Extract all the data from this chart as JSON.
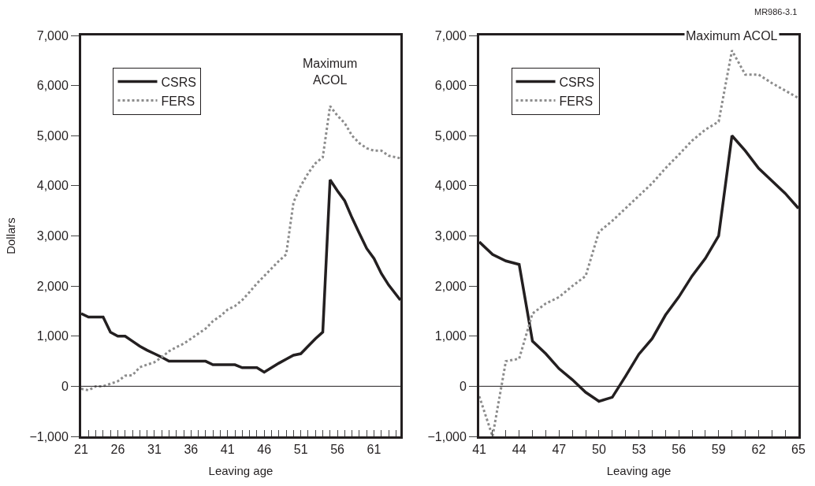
{
  "chart_data": [
    {
      "type": "line",
      "ylabel": "Dollars",
      "xlabel": "Leaving age",
      "xlim": [
        21,
        64.6
      ],
      "ylim": [
        -1000,
        7000
      ],
      "yticks": [
        {
          "value": -1000,
          "label": "−1,000"
        },
        {
          "value": 0,
          "label": "0"
        },
        {
          "value": 1000,
          "label": "1,000"
        },
        {
          "value": 2000,
          "label": "2,000"
        },
        {
          "value": 3000,
          "label": "3,000"
        },
        {
          "value": 4000,
          "label": "4,000"
        },
        {
          "value": 5000,
          "label": "5,000"
        },
        {
          "value": 6000,
          "label": "6,000"
        },
        {
          "value": 7000,
          "label": "7,000"
        }
      ],
      "xticks": [
        21,
        {
          "value": 22,
          "label": null
        },
        {
          "value": 23,
          "label": null
        },
        {
          "value": 24,
          "label": null
        },
        {
          "value": 25,
          "label": null
        },
        26,
        {
          "value": 27,
          "label": null
        },
        {
          "value": 28,
          "label": null
        },
        {
          "value": 29,
          "label": null
        },
        {
          "value": 30,
          "label": null
        },
        31,
        {
          "value": 32,
          "label": null
        },
        {
          "value": 33,
          "label": null
        },
        {
          "value": 34,
          "label": null
        },
        {
          "value": 35,
          "label": null
        },
        36,
        {
          "value": 37,
          "label": null
        },
        {
          "value": 38,
          "label": null
        },
        {
          "value": 39,
          "label": null
        },
        {
          "value": 40,
          "label": null
        },
        41,
        {
          "value": 42,
          "label": null
        },
        {
          "value": 43,
          "label": null
        },
        {
          "value": 44,
          "label": null
        },
        {
          "value": 45,
          "label": null
        },
        46,
        {
          "value": 47,
          "label": null
        },
        {
          "value": 48,
          "label": null
        },
        {
          "value": 49,
          "label": null
        },
        {
          "value": 50,
          "label": null
        },
        51,
        {
          "value": 52,
          "label": null
        },
        {
          "value": 53,
          "label": null
        },
        {
          "value": 54,
          "label": null
        },
        {
          "value": 55,
          "label": null
        },
        56,
        {
          "value": 57,
          "label": null
        },
        {
          "value": 58,
          "label": null
        },
        {
          "value": 59,
          "label": null
        },
        {
          "value": 60,
          "label": null
        },
        61,
        {
          "value": 62,
          "label": null
        },
        {
          "value": 63,
          "label": null
        },
        {
          "value": 64,
          "label": null
        }
      ],
      "x": [
        21,
        22,
        23,
        24,
        25,
        26,
        27,
        28,
        29,
        30,
        31,
        32,
        33,
        34,
        35,
        36,
        37,
        38,
        39,
        40,
        41,
        42,
        43,
        44,
        45,
        46,
        47,
        48,
        49,
        50,
        51,
        52,
        53,
        54,
        55,
        56,
        57,
        58,
        59,
        60,
        61,
        62,
        63,
        64.6
      ],
      "series": [
        {
          "name": "CSRS",
          "color": "#231f20",
          "line_style": "solid",
          "values": [
            1450,
            1380,
            1380,
            1380,
            1080,
            1000,
            1000,
            900,
            800,
            720,
            650,
            580,
            500,
            500,
            500,
            500,
            500,
            500,
            430,
            430,
            430,
            430,
            370,
            370,
            370,
            280,
            370,
            460,
            540,
            620,
            650,
            800,
            950,
            1080,
            4120,
            3900,
            3700,
            3360,
            3050,
            2750,
            2550,
            2250,
            2020,
            1720
          ]
        },
        {
          "name": "FERS",
          "color": "#8c8c8c",
          "line_style": "dotted",
          "values": [
            -50,
            -80,
            0,
            0,
            50,
            100,
            210,
            220,
            380,
            430,
            480,
            580,
            700,
            780,
            850,
            950,
            1050,
            1150,
            1300,
            1400,
            1530,
            1600,
            1720,
            1880,
            2050,
            2200,
            2350,
            2500,
            2630,
            3670,
            4000,
            4250,
            4450,
            4570,
            5590,
            5400,
            5250,
            5000,
            4850,
            4750,
            4700,
            4700,
            4600,
            4550
          ]
        }
      ],
      "ref_lines": [
        {
          "axis": "y",
          "value": 0,
          "color": "#231f20"
        }
      ],
      "annotations": [
        "Maximum\nACOL"
      ],
      "legend": "top left"
    },
    {
      "type": "line",
      "xlabel": "Leaving age",
      "xlim": [
        41,
        65
      ],
      "ylim": [
        -1000,
        7000
      ],
      "yticks": [
        {
          "value": -1000,
          "label": "−1,000"
        },
        {
          "value": 0,
          "label": "0"
        },
        {
          "value": 1000,
          "label": "1,000"
        },
        {
          "value": 2000,
          "label": "2,000"
        },
        {
          "value": 3000,
          "label": "3,000"
        },
        {
          "value": 4000,
          "label": "4,000"
        },
        {
          "value": 5000,
          "label": "5,000"
        },
        {
          "value": 6000,
          "label": "6,000"
        },
        {
          "value": 7000,
          "label": "7,000"
        }
      ],
      "xticks": [
        41,
        {
          "value": 42,
          "label": null
        },
        {
          "value": 43,
          "label": null
        },
        44,
        {
          "value": 45,
          "label": null
        },
        {
          "value": 46,
          "label": null
        },
        47,
        {
          "value": 48,
          "label": null
        },
        {
          "value": 49,
          "label": null
        },
        50,
        {
          "value": 51,
          "label": null
        },
        {
          "value": 52,
          "label": null
        },
        53,
        {
          "value": 54,
          "label": null
        },
        {
          "value": 55,
          "label": null
        },
        56,
        {
          "value": 57,
          "label": null
        },
        {
          "value": 58,
          "label": null
        },
        59,
        {
          "value": 60,
          "label": null
        },
        {
          "value": 61,
          "label": null
        },
        62,
        {
          "value": 63,
          "label": null
        },
        {
          "value": 64,
          "label": null
        },
        65
      ],
      "x": [
        41,
        42,
        43,
        44,
        45,
        46,
        47,
        48,
        49,
        50,
        51,
        52,
        53,
        54,
        55,
        56,
        57,
        58,
        59,
        60,
        61,
        62,
        63,
        64,
        65
      ],
      "series": [
        {
          "name": "CSRS",
          "color": "#231f20",
          "line_style": "solid",
          "values": [
            2880,
            2630,
            2500,
            2430,
            900,
            650,
            350,
            130,
            -120,
            -300,
            -220,
            200,
            640,
            950,
            1420,
            1780,
            2200,
            2550,
            3000,
            5000,
            4700,
            4350,
            4100,
            3850,
            3550
          ]
        },
        {
          "name": "FERS",
          "color": "#8c8c8c",
          "line_style": "dotted",
          "values": [
            -200,
            -1000,
            500,
            550,
            1450,
            1650,
            1780,
            2000,
            2200,
            3080,
            3300,
            3550,
            3800,
            4050,
            4350,
            4620,
            4900,
            5120,
            5280,
            6700,
            6220,
            6220,
            6050,
            5900,
            5750
          ]
        }
      ],
      "ref_lines": [
        {
          "axis": "y",
          "value": 0,
          "color": "#231f20"
        }
      ],
      "annotations": [
        "Maximum ACOL",
        "MR986-3.1"
      ],
      "legend": "top left"
    }
  ]
}
